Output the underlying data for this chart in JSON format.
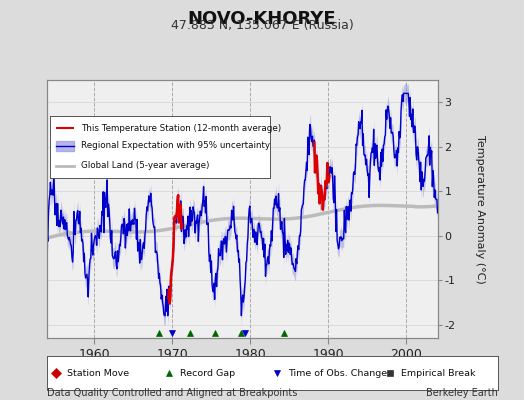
{
  "title": "NOVO-KHORYE",
  "subtitle": "47.883 N, 135.067 E (Russia)",
  "ylabel": "Temperature Anomaly (°C)",
  "footnote_left": "Data Quality Controlled and Aligned at Breakpoints",
  "footnote_right": "Berkeley Earth",
  "year_start": 1954,
  "year_end": 2004,
  "ylim": [
    -2.3,
    3.5
  ],
  "yticks": [
    -2,
    -1,
    0,
    1,
    2,
    3
  ],
  "xticks": [
    1960,
    1970,
    1980,
    1990,
    2000
  ],
  "bg_color": "#dcdcdc",
  "plot_bg_color": "#efefef",
  "station_color": "#dd0000",
  "regional_color": "#0000cc",
  "regional_fill_color": "#9999dd",
  "global_color": "#bbbbbb",
  "global_lw": 2.5,
  "regional_lw": 1.0,
  "station_lw": 1.8,
  "record_gap_years": [
    1968.3,
    1972.3,
    1975.5,
    1978.8,
    1984.3
  ],
  "time_obs_years": [
    1970.0,
    1979.3
  ],
  "red_seg1_start": 1969.5,
  "red_seg1_end": 1971.3,
  "red_seg2_start": 1988.2,
  "red_seg2_end": 1990.2
}
